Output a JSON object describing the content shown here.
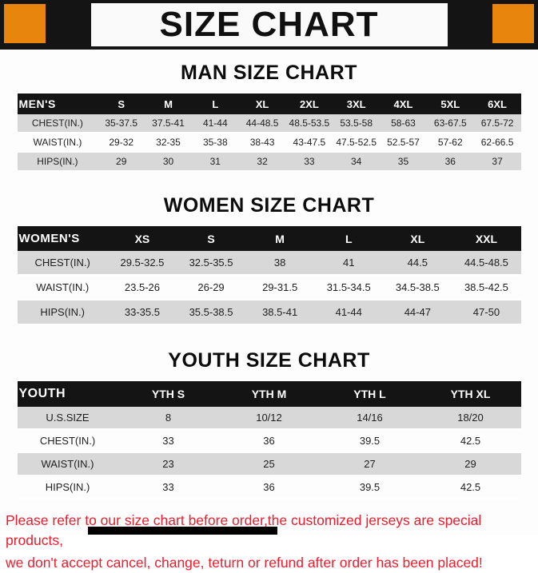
{
  "banner": {
    "title": "SIZE CHART"
  },
  "colors": {
    "accent_orange": "#E8850C",
    "header_black": "#141414",
    "row_gray": "#D8D8D8",
    "footer_red": "#EC1C2D"
  },
  "chart_data": [
    {
      "type": "table",
      "title": "MAN SIZE CHART",
      "columns": [
        "MEN'S",
        "S",
        "M",
        "L",
        "XL",
        "2XL",
        "3XL",
        "4XL",
        "5XL",
        "6XL"
      ],
      "rows": [
        [
          "CHEST(IN.)",
          "35-37.5",
          "37.5-41",
          "41-44",
          "44-48.5",
          "48.5-53.5",
          "53.5-58",
          "58-63",
          "63-67.5",
          "67.5-72"
        ],
        [
          "WAIST(IN.)",
          "29-32",
          "32-35",
          "35-38",
          "38-43",
          "43-47.5",
          "47.5-52.5",
          "52.5-57",
          "57-62",
          "62-66.5"
        ],
        [
          "HIPS(IN.)",
          "29",
          "30",
          "31",
          "32",
          "33",
          "34",
          "35",
          "36",
          "37"
        ]
      ]
    },
    {
      "type": "table",
      "title": "WOMEN SIZE CHART",
      "columns": [
        "WOMEN'S",
        "XS",
        "S",
        "M",
        "L",
        "XL",
        "XXL"
      ],
      "rows": [
        [
          "CHEST(IN.)",
          "29.5-32.5",
          "32.5-35.5",
          "38",
          "41",
          "44.5",
          "44.5-48.5"
        ],
        [
          "WAIST(IN.)",
          "23.5-26",
          "26-29",
          "29-31.5",
          "31.5-34.5",
          "34.5-38.5",
          "38.5-42.5"
        ],
        [
          "HIPS(IN.)",
          "33-35.5",
          "35.5-38.5",
          "38.5-41",
          "41-44",
          "44-47",
          "47-50"
        ]
      ]
    },
    {
      "type": "table",
      "title": "YOUTH SIZE CHART",
      "columns": [
        "YOUTH",
        "YTH S",
        "YTH M",
        "YTH L",
        "YTH XL"
      ],
      "rows": [
        [
          "U.S.SIZE",
          "8",
          "10/12",
          "14/16",
          "18/20"
        ],
        [
          "CHEST(IN.)",
          "33",
          "36",
          "39.5",
          "42.5"
        ],
        [
          "WAIST(IN.)",
          "23",
          "25",
          "27",
          "29"
        ],
        [
          "HIPS(IN.)",
          "33",
          "36",
          "39.5",
          "42.5"
        ]
      ]
    }
  ],
  "footer": {
    "line1": "Please refer to our size chart before order,the customized jerseys are special products,",
    "line2": "we don't accept cancel, change, teturn or refund after order has been placed!"
  }
}
